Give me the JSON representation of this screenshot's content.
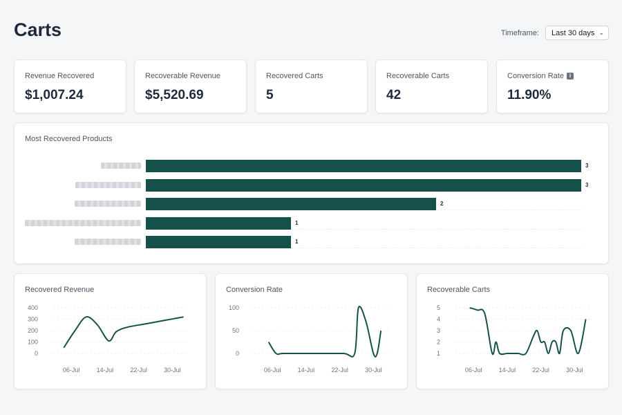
{
  "header": {
    "title": "Carts",
    "timeframe_label": "Timeframe:",
    "timeframe_value": "Last 30 days"
  },
  "stats": [
    {
      "label": "Revenue Recovered",
      "value": "$1,007.24"
    },
    {
      "label": "Recoverable Revenue",
      "value": "$5,520.69"
    },
    {
      "label": "Recovered Carts",
      "value": "5"
    },
    {
      "label": "Recoverable Carts",
      "value": "42"
    },
    {
      "label": "Conversion Rate",
      "value": "11.90%",
      "info_icon": "info-icon"
    }
  ],
  "colors": {
    "accent": "#16504a",
    "background": "#f5f6f7",
    "card": "#ffffff"
  },
  "chart_data": [
    {
      "type": "bar",
      "title": "Most Recovered Products",
      "orientation": "horizontal",
      "categories": [
        "",
        "",
        "",
        "",
        ""
      ],
      "values": [
        3,
        3,
        2,
        1,
        1
      ],
      "xlim": [
        0,
        3
      ],
      "grid": true
    },
    {
      "type": "line",
      "title": "Recovered Revenue",
      "x_ticks": [
        "06-Jul",
        "14-Jul",
        "22-Jul",
        "30-Jul"
      ],
      "y_ticks": [
        0,
        100,
        200,
        300,
        400
      ],
      "ylim": [
        0,
        400
      ],
      "x": [
        3,
        6,
        9,
        12,
        15,
        17,
        20,
        25,
        30,
        35
      ],
      "values": [
        50,
        200,
        320,
        250,
        110,
        190,
        230,
        260,
        290,
        320
      ]
    },
    {
      "type": "line",
      "title": "Conversion Rate",
      "x_ticks": [
        "06-Jul",
        "14-Jul",
        "22-Jul",
        "30-Jul"
      ],
      "y_ticks": [
        0,
        50,
        100
      ],
      "ylim": [
        0,
        100
      ],
      "x": [
        4,
        6,
        8,
        16,
        24,
        27,
        28,
        30,
        32,
        33,
        34
      ],
      "values": [
        25,
        0,
        0,
        0,
        0,
        0,
        100,
        70,
        0,
        0,
        50
      ]
    },
    {
      "type": "line",
      "title": "Recoverable Carts",
      "x_ticks": [
        "06-Jul",
        "14-Jul",
        "22-Jul",
        "30-Jul"
      ],
      "y_ticks": [
        1,
        2,
        3,
        4,
        5
      ],
      "ylim": [
        1,
        5
      ],
      "x": [
        4,
        6,
        8,
        10,
        11,
        12,
        14,
        16,
        17,
        19,
        21,
        22,
        23,
        24,
        25,
        26,
        27,
        28,
        29,
        31,
        33,
        35
      ],
      "values": [
        5,
        4.8,
        4.5,
        1,
        2,
        1,
        1,
        1,
        1,
        1,
        2.5,
        3,
        2,
        2,
        1,
        2,
        2,
        1,
        3,
        3,
        1,
        4
      ]
    }
  ]
}
